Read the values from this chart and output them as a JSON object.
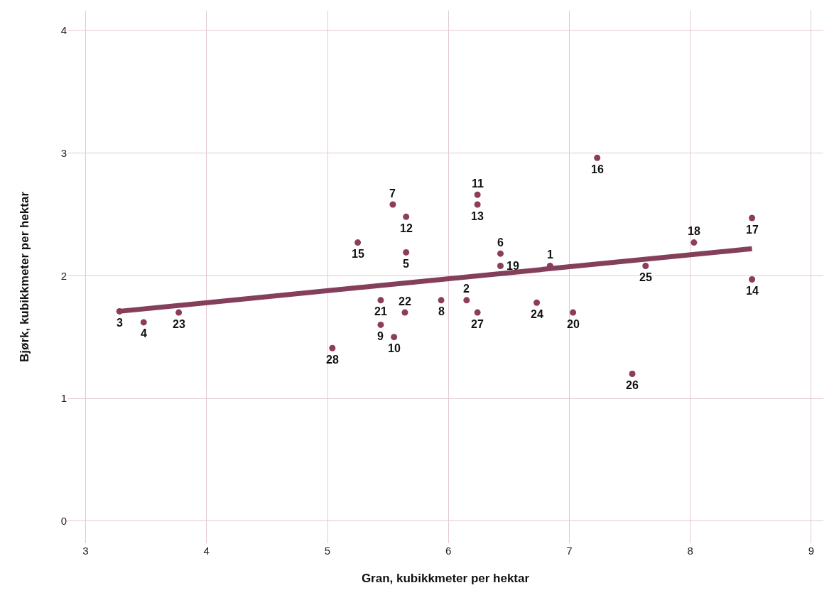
{
  "chart_data": {
    "type": "scatter",
    "xlabel": "Gran, kubikkmeter per hektar",
    "ylabel": "Bjørk, kubikkmeter per hektar",
    "xlim": [
      2.85,
      9.1
    ],
    "ylim": [
      -0.18,
      4.16
    ],
    "xticks": [
      3,
      4,
      5,
      6,
      7,
      8,
      9
    ],
    "yticks": [
      0,
      1,
      2,
      3,
      4
    ],
    "grid": true,
    "series": [
      {
        "color": "#8b3d5a",
        "marker": "circle",
        "x": [
          6.84,
          6.15,
          3.28,
          3.48,
          5.65,
          6.43,
          5.54,
          5.94,
          5.44,
          5.55,
          6.24,
          5.65,
          6.24,
          8.51,
          5.25,
          7.23,
          8.51,
          8.03,
          6.43,
          7.03,
          5.44,
          5.64,
          3.77,
          6.73,
          7.63,
          7.52,
          6.24,
          5.04
        ],
        "values": [
          2.08,
          1.8,
          1.71,
          1.62,
          2.19,
          2.18,
          2.58,
          1.8,
          1.6,
          1.5,
          2.66,
          2.48,
          2.58,
          1.97,
          2.27,
          2.96,
          2.47,
          2.27,
          2.08,
          1.7,
          1.8,
          1.7,
          1.7,
          1.78,
          2.08,
          1.2,
          1.7,
          1.41
        ]
      },
      {
        "type": "line",
        "color": "#84405a",
        "x": [
          3.28,
          8.51
        ],
        "values": [
          1.71,
          2.22
        ]
      }
    ],
    "annotations": [
      {
        "text": "1",
        "x": 6.84,
        "y": 2.08
      },
      {
        "text": "2",
        "x": 6.15,
        "y": 1.8
      },
      {
        "text": "3",
        "x": 3.28,
        "y": 1.71
      },
      {
        "text": "4",
        "x": 3.48,
        "y": 1.62
      },
      {
        "text": "5",
        "x": 5.65,
        "y": 2.19
      },
      {
        "text": "6",
        "x": 6.43,
        "y": 2.18
      },
      {
        "text": "7",
        "x": 5.54,
        "y": 2.58
      },
      {
        "text": "8",
        "x": 5.94,
        "y": 1.8
      },
      {
        "text": "9",
        "x": 5.44,
        "y": 1.6
      },
      {
        "text": "10",
        "x": 5.55,
        "y": 1.5
      },
      {
        "text": "11",
        "x": 6.24,
        "y": 2.66
      },
      {
        "text": "12",
        "x": 5.65,
        "y": 2.48
      },
      {
        "text": "13",
        "x": 6.24,
        "y": 2.58
      },
      {
        "text": "14",
        "x": 8.51,
        "y": 1.97
      },
      {
        "text": "15",
        "x": 5.25,
        "y": 2.27
      },
      {
        "text": "16",
        "x": 7.23,
        "y": 2.96
      },
      {
        "text": "17",
        "x": 8.51,
        "y": 2.47
      },
      {
        "text": "18",
        "x": 8.03,
        "y": 2.27
      },
      {
        "text": "19",
        "x": 6.43,
        "y": 2.08
      },
      {
        "text": "20",
        "x": 7.03,
        "y": 1.7
      },
      {
        "text": "21",
        "x": 5.44,
        "y": 1.8
      },
      {
        "text": "22",
        "x": 5.64,
        "y": 1.7
      },
      {
        "text": "23",
        "x": 3.77,
        "y": 1.7
      },
      {
        "text": "24",
        "x": 6.73,
        "y": 1.78
      },
      {
        "text": "25",
        "x": 7.63,
        "y": 2.08
      },
      {
        "text": "26",
        "x": 7.52,
        "y": 1.2
      },
      {
        "text": "27",
        "x": 6.24,
        "y": 1.7
      },
      {
        "text": "28",
        "x": 5.04,
        "y": 1.41
      }
    ]
  }
}
